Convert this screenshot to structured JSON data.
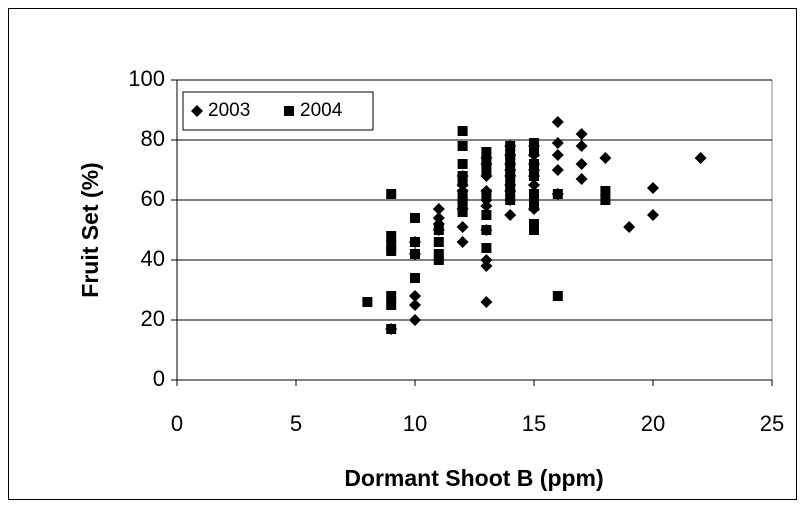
{
  "chart_data": {
    "type": "scatter",
    "x_label": "Dormant Shoot B (ppm)",
    "y_label": "Fruit Set (%)",
    "xlim": [
      0,
      25
    ],
    "xticks": [
      0,
      5,
      10,
      15,
      20,
      25
    ],
    "ylim": [
      0,
      100
    ],
    "yticks": [
      0,
      20,
      40,
      60,
      80,
      100
    ],
    "grid": true,
    "legend": "upper left",
    "series": [
      {
        "name": "2003",
        "color": "#000000",
        "marker": "diamond",
        "x": [
          9,
          10,
          10,
          10,
          10,
          10,
          11,
          11,
          11,
          11,
          12,
          12,
          12,
          12,
          12,
          12,
          12,
          13,
          13,
          13,
          13,
          13,
          13,
          13,
          13,
          13,
          13,
          14,
          14,
          14,
          14,
          14,
          14,
          14,
          14,
          14,
          15,
          15,
          15,
          15,
          15,
          15,
          15,
          15,
          16,
          16,
          16,
          16,
          16,
          17,
          17,
          17,
          17,
          18,
          19,
          20,
          20,
          22
        ],
        "values": [
          17,
          20,
          25,
          28,
          42,
          46,
          50,
          52,
          54,
          57,
          46,
          51,
          57,
          60,
          63,
          65,
          68,
          26,
          38,
          40,
          50,
          58,
          60,
          63,
          68,
          72,
          74,
          55,
          60,
          63,
          65,
          68,
          70,
          72,
          75,
          78,
          57,
          60,
          65,
          68,
          70,
          72,
          75,
          78,
          62,
          70,
          75,
          79,
          86,
          67,
          72,
          78,
          82,
          74,
          51,
          55,
          64,
          74
        ]
      },
      {
        "name": "2004",
        "color": "#000000",
        "marker": "square",
        "x": [
          8,
          9,
          9,
          9,
          9,
          9,
          9,
          9,
          10,
          10,
          10,
          10,
          11,
          11,
          11,
          11,
          12,
          12,
          12,
          12,
          12,
          12,
          12,
          12,
          12,
          13,
          13,
          13,
          13,
          13,
          13,
          13,
          14,
          14,
          14,
          14,
          14,
          14,
          14,
          15,
          15,
          15,
          15,
          15,
          15,
          15,
          15,
          16,
          16,
          18,
          18
        ],
        "values": [
          26,
          17,
          25,
          28,
          43,
          45,
          48,
          62,
          34,
          42,
          46,
          54,
          40,
          42,
          46,
          50,
          56,
          58,
          60,
          62,
          66,
          68,
          72,
          78,
          83,
          44,
          50,
          55,
          62,
          70,
          73,
          76,
          60,
          63,
          67,
          70,
          73,
          75,
          78,
          50,
          52,
          58,
          62,
          68,
          72,
          76,
          79,
          28,
          62,
          60,
          63
        ]
      }
    ]
  }
}
